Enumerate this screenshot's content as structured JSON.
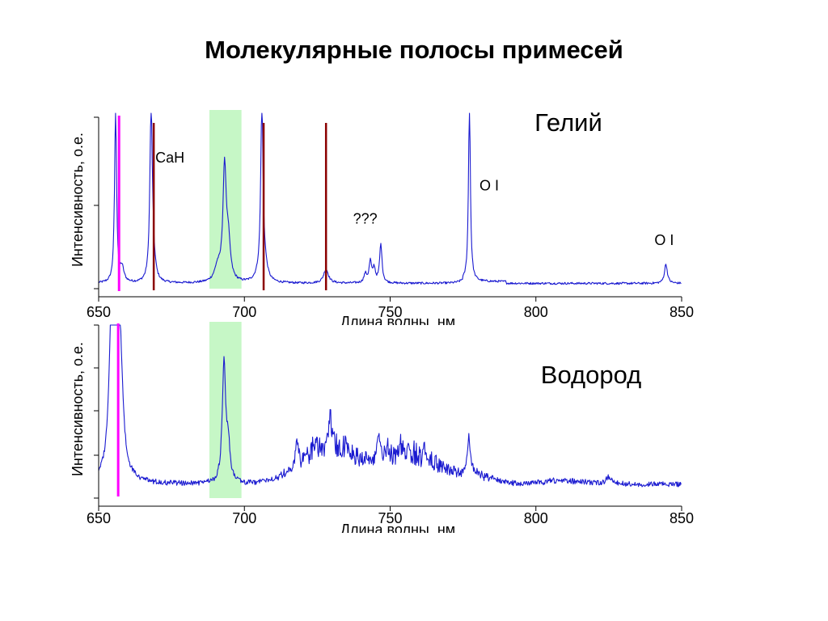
{
  "slide": {
    "title": "Молекулярные полосы примесей"
  },
  "colors": {
    "spectrum": "#1a1ad0",
    "highlight_band": "#c6f7c6",
    "marker_line": "#ff00ff",
    "he_lines": "#8b0000",
    "axis": "#000000"
  },
  "chart_data": [
    {
      "type": "line",
      "panel": "helium",
      "label": "Гелий",
      "xlabel": "Длина волны, нм",
      "ylabel": "Интенсивность, о.е.",
      "xlim": [
        650,
        850
      ],
      "ylim": [
        0,
        1
      ],
      "xticks": [
        "650",
        "700",
        "750",
        "800",
        "850"
      ],
      "grid": false,
      "highlight_band": [
        688,
        699
      ],
      "marker_line": 657,
      "reference_lines": [
        668.9,
        706.6,
        728.0
      ],
      "annotations": [
        {
          "text": "CaH",
          "x": 685,
          "y": 0.72
        },
        {
          "text": "???",
          "x": 747,
          "y": 0.37
        },
        {
          "text": "O I",
          "x": 784,
          "y": 0.56
        },
        {
          "text": "O I",
          "x": 844,
          "y": 0.25
        }
      ],
      "series": [
        {
          "baseline": 0.03,
          "peaks": [
            {
              "x": 655.8,
              "y": 1.0,
              "w": 0.4
            },
            {
              "x": 658.0,
              "y": 0.08,
              "w": 0.8
            },
            {
              "x": 668.0,
              "y": 1.0,
              "w": 0.5
            },
            {
              "x": 668.8,
              "y": 0.08,
              "w": 0.8
            },
            {
              "x": 690.8,
              "y": 0.08,
              "w": 1.2
            },
            {
              "x": 693.2,
              "y": 0.64,
              "w": 0.7
            },
            {
              "x": 694.5,
              "y": 0.2,
              "w": 0.8
            },
            {
              "x": 705.2,
              "y": 0.04,
              "w": 1.5
            },
            {
              "x": 706.0,
              "y": 1.0,
              "w": 0.45
            },
            {
              "x": 707.0,
              "y": 0.08,
              "w": 1.0
            },
            {
              "x": 728.0,
              "y": 0.08,
              "w": 1.0
            },
            {
              "x": 741.5,
              "y": 0.05,
              "w": 0.6
            },
            {
              "x": 743.2,
              "y": 0.12,
              "w": 0.5
            },
            {
              "x": 744.5,
              "y": 0.08,
              "w": 0.5
            },
            {
              "x": 746.8,
              "y": 0.22,
              "w": 0.5
            },
            {
              "x": 777.2,
              "y": 1.0,
              "w": 0.4
            },
            {
              "x": 844.6,
              "y": 0.11,
              "w": 0.6
            }
          ]
        }
      ]
    },
    {
      "type": "line",
      "panel": "hydrogen",
      "label": "Водород",
      "xlabel": "Длина волны, нм",
      "ylabel": "Интенсивность, о.е.",
      "xlim": [
        650,
        850
      ],
      "ylim": [
        0,
        1
      ],
      "xticks": [
        "650",
        "700",
        "750",
        "800",
        "850"
      ],
      "grid": false,
      "highlight_band": [
        688,
        699
      ],
      "marker_line": 656.7,
      "series": [
        {
          "baseline": 0.08,
          "broad": [
            {
              "x": 730,
              "y": 0.2,
              "w": 14
            },
            {
              "x": 758,
              "y": 0.17,
              "w": 13
            },
            {
              "x": 780,
              "y": 0.05,
              "w": 8
            },
            {
              "x": 810,
              "y": 0.02,
              "w": 10
            }
          ],
          "peaks": [
            {
              "x": 654.5,
              "y": 0.9,
              "w": 1.0
            },
            {
              "x": 656.3,
              "y": 0.8,
              "w": 1.3
            },
            {
              "x": 657.5,
              "y": 0.4,
              "w": 1.0
            },
            {
              "x": 693.0,
              "y": 0.7,
              "w": 0.7
            },
            {
              "x": 694.5,
              "y": 0.2,
              "w": 0.7
            },
            {
              "x": 718.0,
              "y": 0.12,
              "w": 0.8
            },
            {
              "x": 724.0,
              "y": 0.08,
              "w": 0.8
            },
            {
              "x": 729.5,
              "y": 0.15,
              "w": 0.8
            },
            {
              "x": 735.0,
              "y": 0.06,
              "w": 0.8
            },
            {
              "x": 746.0,
              "y": 0.15,
              "w": 0.7
            },
            {
              "x": 749.0,
              "y": 0.08,
              "w": 0.7
            },
            {
              "x": 754.0,
              "y": 0.06,
              "w": 0.7
            },
            {
              "x": 762.0,
              "y": 0.05,
              "w": 0.7
            },
            {
              "x": 777.0,
              "y": 0.2,
              "w": 0.6
            },
            {
              "x": 825.0,
              "y": 0.04,
              "w": 1.2
            }
          ]
        }
      ]
    }
  ]
}
